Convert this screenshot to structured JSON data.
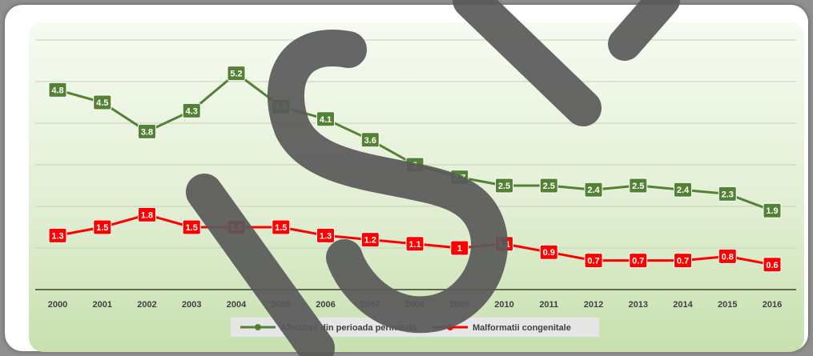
{
  "chart_data": {
    "type": "line",
    "title": "",
    "xlabel": "",
    "ylabel": "",
    "ylim": [
      0,
      6
    ],
    "grid": true,
    "legend_position": "bottom",
    "categories": [
      "2000",
      "2001",
      "2002",
      "2003",
      "2004",
      "2005",
      "2006",
      "2007",
      "2008",
      "2009",
      "2010",
      "2011",
      "2012",
      "2013",
      "2014",
      "2015",
      "2016"
    ],
    "series": [
      {
        "name": "Afectiuni din perioada perinatala",
        "color": "#548235",
        "values": [
          4.8,
          4.5,
          3.8,
          4.3,
          5.2,
          4.4,
          4.1,
          3.6,
          3,
          2.7,
          2.5,
          2.5,
          2.4,
          2.5,
          2.4,
          2.3,
          1.9
        ]
      },
      {
        "name": "Malformatii congenitale",
        "color": "#ff0000",
        "values": [
          1.3,
          1.5,
          1.8,
          1.5,
          1.5,
          1.5,
          1.3,
          1.2,
          1.1,
          1,
          1.1,
          0.9,
          0.7,
          0.7,
          0.7,
          0.8,
          0.6
        ]
      }
    ]
  },
  "watermark": {
    "color": "#595959"
  }
}
